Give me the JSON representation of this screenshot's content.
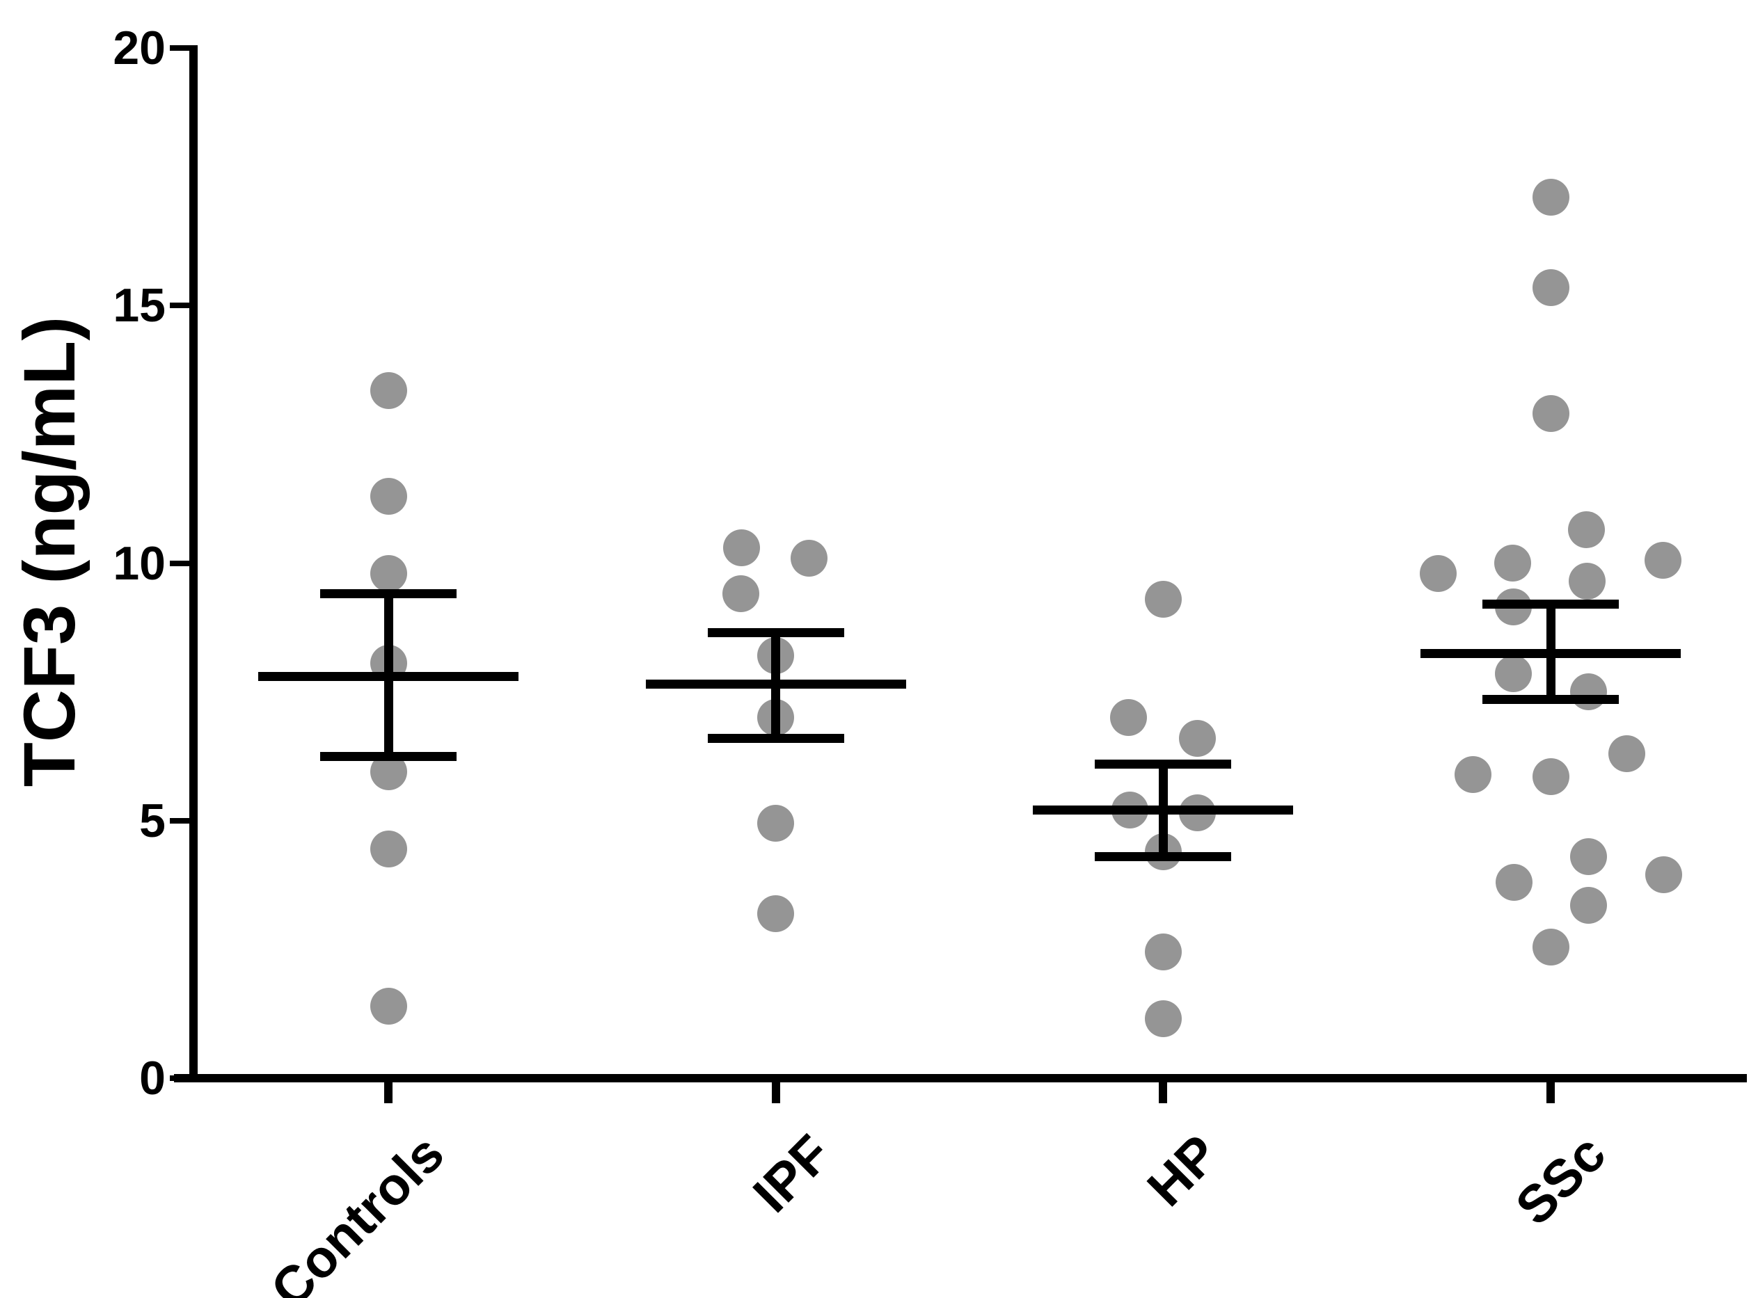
{
  "chart_data": {
    "type": "scatter",
    "title": "",
    "subtitle": "",
    "xlabel": "",
    "ylabel": "TCF3 (ng/mL)",
    "ylim": [
      0,
      20
    ],
    "ytick_values": [
      0,
      5,
      10,
      15,
      20
    ],
    "yticks": [
      "0",
      "5",
      "10",
      "15",
      "20"
    ],
    "categories": [
      "Controls",
      "IPF",
      "HP",
      "SSc"
    ],
    "grid": false,
    "legend_position": "none",
    "marker_color": "#959595",
    "line_color": "#000000",
    "error_bar_style": "mean with SEM caps",
    "groups": [
      {
        "label": "Controls",
        "mean": 7.8,
        "sem_upper": 9.4,
        "sem_lower": 6.25,
        "values": [
          13.35,
          11.3,
          9.8,
          8.05,
          5.95,
          4.45,
          1.4
        ],
        "points": [
          {
            "dx": 0,
            "v": 13.35
          },
          {
            "dx": 0,
            "v": 11.3
          },
          {
            "dx": 0,
            "v": 9.8
          },
          {
            "dx": 0,
            "v": 8.05
          },
          {
            "dx": 0,
            "v": 5.95
          },
          {
            "dx": 0,
            "v": 4.45
          },
          {
            "dx": 0,
            "v": 1.4
          }
        ]
      },
      {
        "label": "IPF",
        "mean": 7.65,
        "sem_upper": 8.65,
        "sem_lower": 6.6,
        "values": [
          10.3,
          10.1,
          9.4,
          8.2,
          7.0,
          4.95,
          3.2
        ],
        "points": [
          {
            "dx": -49,
            "v": 10.3
          },
          {
            "dx": 48,
            "v": 10.1
          },
          {
            "dx": -50,
            "v": 9.4
          },
          {
            "dx": 0,
            "v": 8.2
          },
          {
            "dx": 0,
            "v": 7.0
          },
          {
            "dx": 0,
            "v": 4.95
          },
          {
            "dx": 0,
            "v": 3.2
          }
        ]
      },
      {
        "label": "HP",
        "mean": 5.2,
        "sem_upper": 6.1,
        "sem_lower": 4.3,
        "values": [
          9.3,
          7.0,
          6.6,
          5.2,
          5.15,
          4.4,
          2.45,
          1.15
        ],
        "points": [
          {
            "dx": 0,
            "v": 9.3
          },
          {
            "dx": -50,
            "v": 7.0
          },
          {
            "dx": 49,
            "v": 6.6
          },
          {
            "dx": -48,
            "v": 5.2
          },
          {
            "dx": 49,
            "v": 5.15
          },
          {
            "dx": 0,
            "v": 4.4
          },
          {
            "dx": 0,
            "v": 2.45
          },
          {
            "dx": 0,
            "v": 1.15
          }
        ]
      },
      {
        "label": "SSc",
        "mean": 8.25,
        "sem_upper": 9.2,
        "sem_lower": 7.35,
        "values": [
          17.1,
          15.35,
          12.9,
          10.65,
          10.05,
          10.0,
          9.8,
          9.65,
          9.15,
          7.85,
          7.5,
          6.3,
          5.9,
          5.85,
          4.3,
          3.95,
          3.8,
          3.35,
          2.55
        ],
        "points": [
          {
            "dx": 0,
            "v": 17.1
          },
          {
            "dx": 0,
            "v": 15.35
          },
          {
            "dx": 0,
            "v": 12.9
          },
          {
            "dx": 51,
            "v": 10.65
          },
          {
            "dx": 161,
            "v": 10.05
          },
          {
            "dx": -55,
            "v": 10.0
          },
          {
            "dx": -162,
            "v": 9.8
          },
          {
            "dx": 52,
            "v": 9.65
          },
          {
            "dx": -54,
            "v": 9.15
          },
          {
            "dx": -54,
            "v": 7.85
          },
          {
            "dx": 54,
            "v": 7.5
          },
          {
            "dx": 109,
            "v": 6.3
          },
          {
            "dx": -112,
            "v": 5.9
          },
          {
            "dx": 0,
            "v": 5.85
          },
          {
            "dx": 54,
            "v": 4.3
          },
          {
            "dx": 162,
            "v": 3.95
          },
          {
            "dx": -53,
            "v": 3.8
          },
          {
            "dx": 54,
            "v": 3.35
          },
          {
            "dx": 0,
            "v": 2.55
          }
        ]
      }
    ]
  }
}
